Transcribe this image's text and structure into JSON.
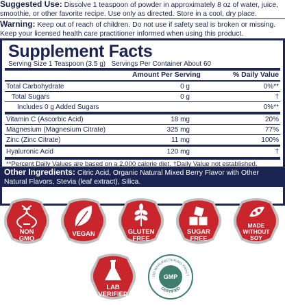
{
  "suggested_use": {
    "label": "Suggested Use:",
    "text": " Dissolve 1 teaspoon of powder in approximately 8 oz of water, juice, smoothie, or other favorite recipe. Use only as directed. Store in a cool, dry place."
  },
  "warning": {
    "label": "Warning:",
    "text": " Keep out of reach of children. Do not use if safety seal is broken or missing. Keep your licensed health care practitioner informed when using this product."
  },
  "facts": {
    "title": "Supplement Facts",
    "serving_size": "Serving Size 1 Teaspoon (3.5 g)",
    "servings_per_container": "Servings Per Container About 60",
    "col_amount": "Amount Per Serving",
    "col_dv": "% Daily Value",
    "rows": [
      {
        "name": "Total Carbohydrate",
        "amount": "0 g",
        "dv": "0%**"
      },
      {
        "name": "Total Sugars",
        "amount": "0 g",
        "dv": "†"
      },
      {
        "name": "Includes 0 g Added Sugars",
        "amount": "",
        "dv": "0%**"
      },
      {
        "name": "Vitamin C (Ascorbic Acid)",
        "amount": "18 mg",
        "dv": "20%"
      },
      {
        "name": "Magnesium (Magnesium Citrate)",
        "amount": "325 mg",
        "dv": "77%"
      },
      {
        "name": "Zinc (Zinc Citrate)",
        "amount": "11 mg",
        "dv": "100%"
      },
      {
        "name": "Hyaluronic Acid",
        "amount": "120 mg",
        "dv": "†"
      }
    ],
    "footnote": "**Percent Daily Values are based on a 2,000 calorie diet. †Daily Value not established."
  },
  "other_ingredients": {
    "label": "Other Ingredients:",
    "text": " Citric Acid, Organic Natural Mixed Berry Flavor with Other Natural Flavors, Stevia (leaf extract), Silica."
  },
  "badges": [
    {
      "line1": "NON",
      "line2": "GMO",
      "line3": "",
      "icon": "dna-icon"
    },
    {
      "line1": "VEGAN",
      "line2": "",
      "line3": "",
      "icon": "leaf-icon"
    },
    {
      "line1": "GLUTEN",
      "line2": "FREE",
      "line3": "",
      "icon": "wheat-icon"
    },
    {
      "line1": "SUGAR",
      "line2": "FREE",
      "line3": "",
      "icon": "sugar-cubes-icon"
    },
    {
      "line1": "MADE",
      "line2": "WITHOUT",
      "line3": "SOY",
      "icon": "soy-icon"
    },
    {
      "line1": "LAB",
      "line2": "VERIFIED",
      "line3": "",
      "icon": "flask-icon"
    }
  ],
  "gmp": {
    "center": "GMP",
    "ring_top": "GOOD MANUFACTURING PRACTICE",
    "ring_bottom": "CERTIFIED"
  },
  "colors": {
    "navy": "#1b2350",
    "badge_red": "#c8252c",
    "badge_gray": "#bfbfbf",
    "gmp_green": "#3e7e6e"
  }
}
